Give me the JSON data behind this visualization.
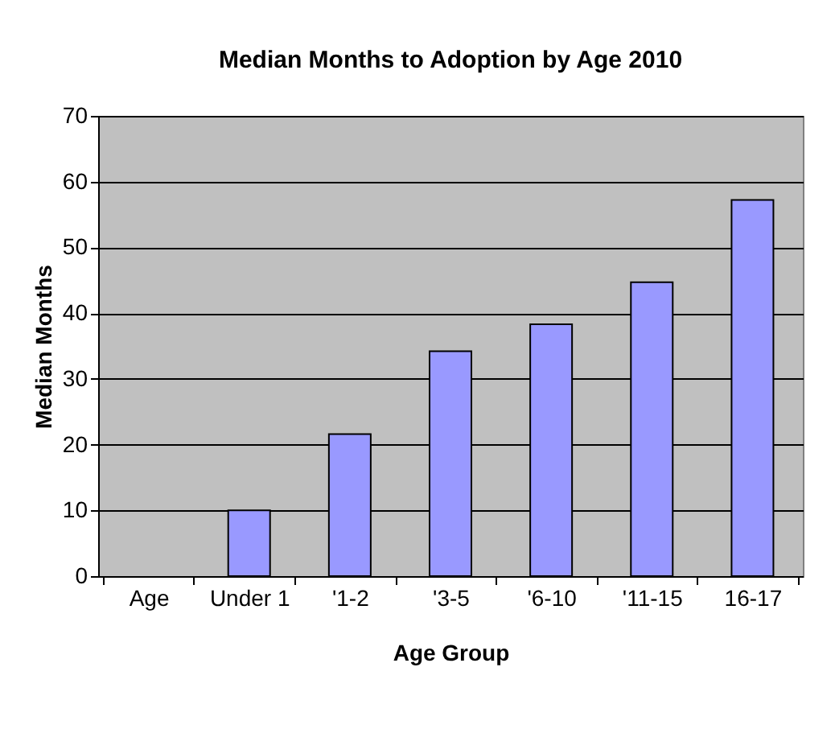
{
  "chart_data": {
    "type": "bar",
    "title": "Median Months to Adoption by Age 2010",
    "xlabel": "Age Group",
    "ylabel": "Median Months",
    "categories": [
      "Age",
      "Under 1",
      "'1-2",
      "'3-5",
      "'6-10",
      "'11-15",
      "16-17"
    ],
    "values": [
      null,
      10.0,
      21.6,
      34.2,
      38.3,
      44.7,
      57.2
    ],
    "color": "#9999ff",
    "ylim": [
      0,
      70
    ],
    "yticks": [
      0,
      10,
      20,
      30,
      40,
      50,
      60,
      70
    ],
    "grid": "y"
  }
}
